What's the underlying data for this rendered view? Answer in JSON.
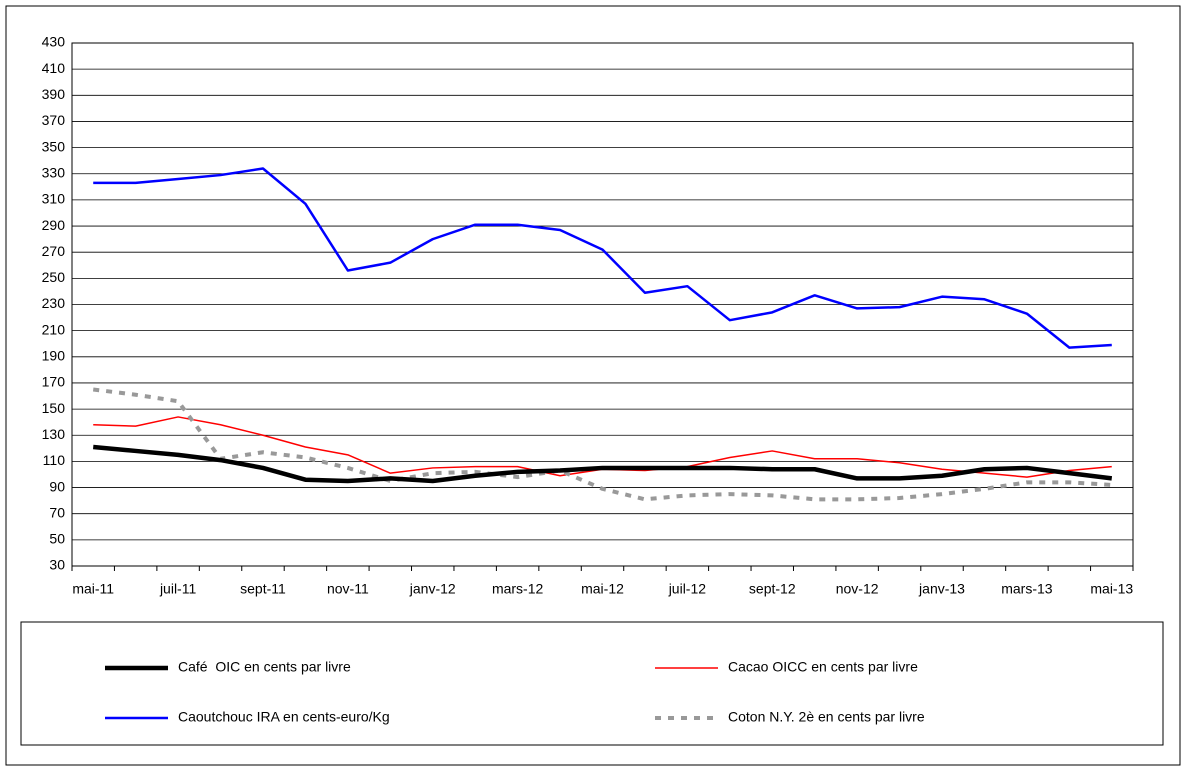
{
  "chart_data": {
    "type": "line",
    "categories": [
      "mai-11",
      null,
      "juil-11",
      null,
      "sept-11",
      null,
      "nov-11",
      null,
      "janv-12",
      null,
      "mars-12",
      null,
      "mai-12",
      null,
      "juil-12",
      null,
      "sept-12",
      null,
      "nov-12",
      null,
      "janv-13",
      null,
      "mars-13",
      null,
      "mai-13"
    ],
    "series": [
      {
        "name": "Café  OIC en cents par livre",
        "color": "#000000",
        "values": [
          121,
          118,
          115,
          111,
          105,
          96,
          95,
          97,
          95,
          99,
          102,
          103,
          105,
          105,
          105,
          105,
          104,
          104,
          97,
          97,
          99,
          104,
          105,
          101,
          97
        ]
      },
      {
        "name": "Cacao OICC en cents par livre",
        "color": "#ff0000",
        "values": [
          138,
          137,
          144,
          138,
          130,
          121,
          115,
          101,
          105,
          106,
          106,
          99,
          104,
          103,
          106,
          113,
          118,
          112,
          112,
          109,
          104,
          101,
          98,
          103,
          106
        ]
      },
      {
        "name": "Caoutchouc IRA en cents-euro/Kg",
        "color": "#0000ff",
        "values": [
          323,
          323,
          326,
          329,
          334,
          307,
          256,
          262,
          280,
          291,
          291,
          287,
          272,
          239,
          244,
          218,
          224,
          237,
          227,
          228,
          236,
          234,
          223,
          197,
          199
        ]
      },
      {
        "name": "Coton N.Y. 2è en cents par livre",
        "color": "#999999",
        "values": [
          165,
          161,
          156,
          112,
          117,
          113,
          105,
          95,
          101,
          102,
          98,
          103,
          89,
          81,
          84,
          85,
          84,
          81,
          81,
          82,
          85,
          89,
          94,
          94,
          92
        ]
      }
    ],
    "ylim": [
      30,
      430
    ],
    "yticks": [
      30,
      50,
      70,
      90,
      110,
      130,
      150,
      170,
      190,
      210,
      230,
      250,
      270,
      290,
      310,
      330,
      350,
      370,
      390,
      410,
      430
    ],
    "grid": true
  }
}
